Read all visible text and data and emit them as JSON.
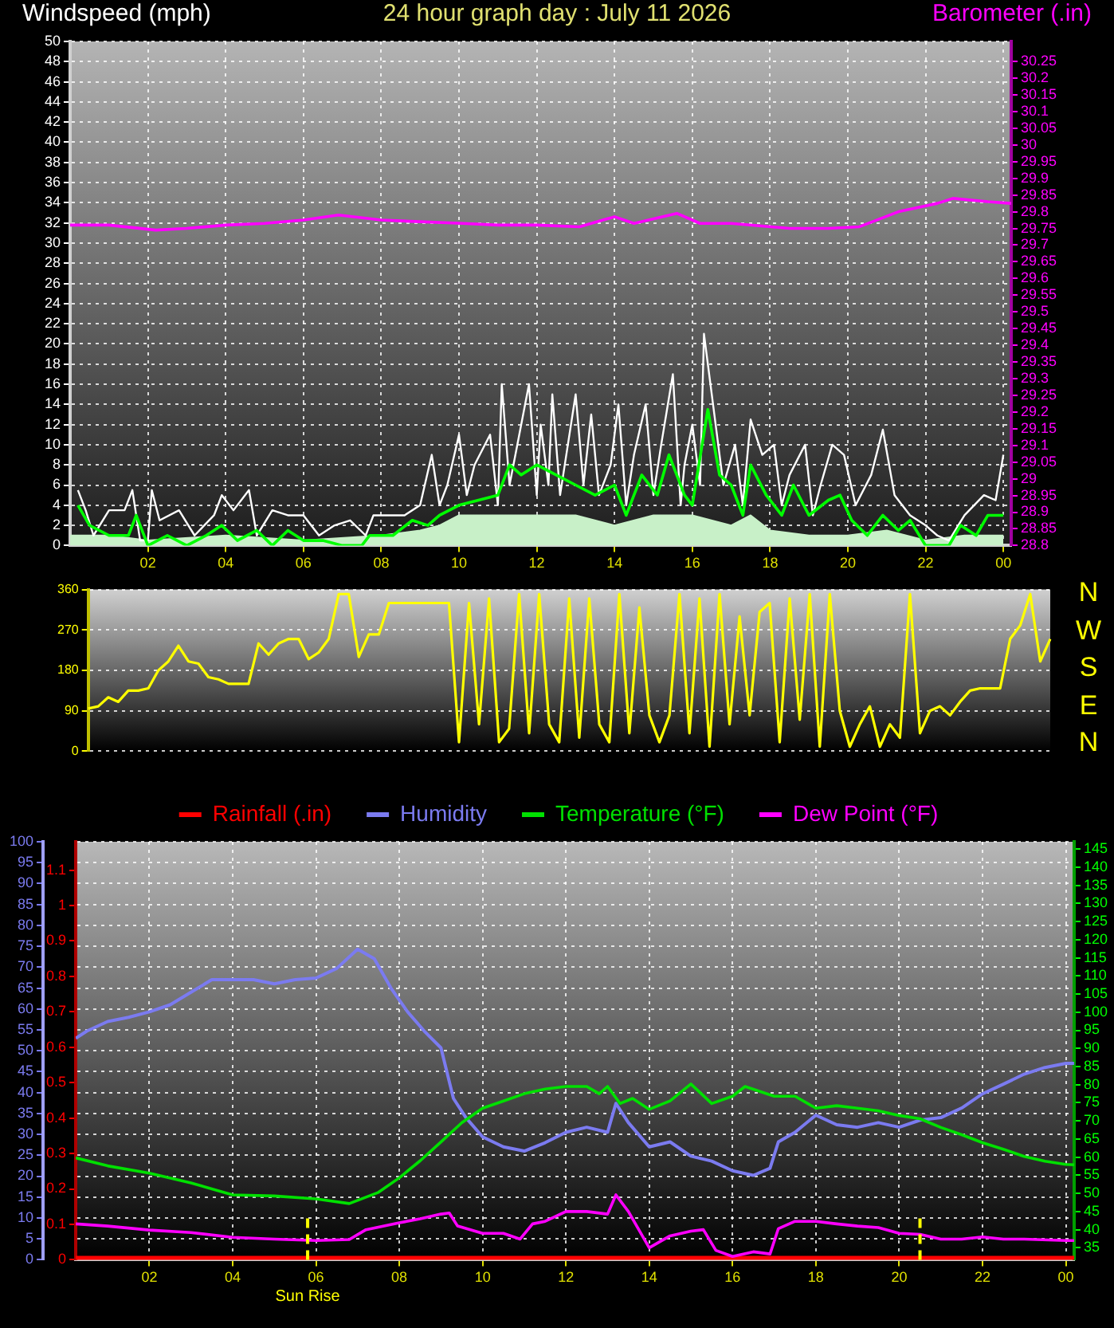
{
  "chart_data": [
    {
      "type": "line",
      "title": "24 hour graph day : July 11 2026",
      "ylabel": "Windspeed (mph)",
      "y2label": "Barometer (.in)",
      "xlim": [
        "2026-07-11T00:00",
        "2026-07-12T00:12"
      ],
      "xticks": [
        {
          "value": "2026-07-11T02:00",
          "label": "02"
        },
        {
          "value": "2026-07-11T04:00",
          "label": "04"
        },
        {
          "value": "2026-07-11T06:00",
          "label": "06"
        },
        {
          "value": "2026-07-11T08:00",
          "label": "08"
        },
        {
          "value": "2026-07-11T10:00",
          "label": "10"
        },
        {
          "value": "2026-07-11T12:00",
          "label": "12"
        },
        {
          "value": "2026-07-11T14:00",
          "label": "14"
        },
        {
          "value": "2026-07-11T16:00",
          "label": "16"
        },
        {
          "value": "2026-07-11T18:00",
          "label": "18"
        },
        {
          "value": "2026-07-11T20:00",
          "label": "20"
        },
        {
          "value": "2026-07-11T22:00",
          "label": "22"
        },
        {
          "value": "2026-07-12T00:00",
          "label": "00"
        }
      ],
      "ylim": [
        0,
        50
      ],
      "yticks": [
        0,
        2,
        4,
        6,
        8,
        10,
        12,
        14,
        16,
        18,
        20,
        22,
        24,
        26,
        28,
        30,
        32,
        34,
        36,
        38,
        40,
        42,
        44,
        46,
        48,
        50
      ],
      "y2lim": [
        28.8,
        30.31
      ],
      "y2ticks": [
        28.8,
        28.85,
        28.9,
        28.95,
        29,
        29.05,
        29.1,
        29.15,
        29.2,
        29.25,
        29.3,
        29.35,
        29.4,
        29.45,
        29.5,
        29.55,
        29.6,
        29.65,
        29.7,
        29.75,
        29.8,
        29.85,
        29.9,
        29.95,
        30,
        30.05,
        30.1,
        30.15,
        30.2,
        30.25
      ],
      "grid": true,
      "series": [
        {
          "type": "area",
          "color": "#c8f0c8",
          "x": [
            "2026-07-11T00:00",
            "2026-07-11T01:00",
            "2026-07-11T02:00",
            "2026-07-11T04:00",
            "2026-07-11T06:00",
            "2026-07-11T08:00",
            "2026-07-11T09:00",
            "2026-07-11T09:30",
            "2026-07-11T10:00",
            "2026-07-11T11:00",
            "2026-07-11T12:00",
            "2026-07-11T13:00",
            "2026-07-11T14:00",
            "2026-07-11T15:00",
            "2026-07-11T16:00",
            "2026-07-11T17:00",
            "2026-07-11T17:30",
            "2026-07-11T18:00",
            "2026-07-11T19:00",
            "2026-07-11T20:00",
            "2026-07-11T21:00",
            "2026-07-11T22:00",
            "2026-07-11T23:00",
            "2026-07-12T00:00"
          ],
          "values": [
            1,
            1,
            0.5,
            1,
            0.5,
            1,
            1.5,
            2,
            3,
            3,
            3,
            3,
            2,
            3,
            3,
            2,
            3,
            1.5,
            1,
            1,
            1.5,
            0.5,
            1,
            1
          ]
        },
        {
          "color": "#ffffff",
          "x": [
            "2026-07-11T00:12",
            "2026-07-11T00:24",
            "2026-07-11T00:36",
            "2026-07-11T01:00",
            "2026-07-11T01:24",
            "2026-07-11T01:36",
            "2026-07-11T01:48",
            "2026-07-11T02:00",
            "2026-07-11T02:06",
            "2026-07-11T02:18",
            "2026-07-11T02:48",
            "2026-07-11T03:12",
            "2026-07-11T03:42",
            "2026-07-11T03:54",
            "2026-07-11T04:12",
            "2026-07-11T04:36",
            "2026-07-11T04:48",
            "2026-07-11T05:12",
            "2026-07-11T05:36",
            "2026-07-11T06:00",
            "2026-07-11T06:24",
            "2026-07-11T06:48",
            "2026-07-11T07:12",
            "2026-07-11T07:36",
            "2026-07-11T07:48",
            "2026-07-11T08:12",
            "2026-07-11T08:36",
            "2026-07-11T09:00",
            "2026-07-11T09:18",
            "2026-07-11T09:30",
            "2026-07-11T09:42",
            "2026-07-11T10:00",
            "2026-07-11T10:12",
            "2026-07-11T10:24",
            "2026-07-11T10:48",
            "2026-07-11T11:00",
            "2026-07-11T11:06",
            "2026-07-11T11:18",
            "2026-07-11T11:30",
            "2026-07-11T11:48",
            "2026-07-11T12:00",
            "2026-07-11T12:06",
            "2026-07-11T12:18",
            "2026-07-11T12:24",
            "2026-07-11T12:36",
            "2026-07-11T12:48",
            "2026-07-11T13:00",
            "2026-07-11T13:12",
            "2026-07-11T13:24",
            "2026-07-11T13:36",
            "2026-07-11T13:54",
            "2026-07-11T14:06",
            "2026-07-11T14:18",
            "2026-07-11T14:30",
            "2026-07-11T14:48",
            "2026-07-11T15:00",
            "2026-07-11T15:12",
            "2026-07-11T15:30",
            "2026-07-11T15:42",
            "2026-07-11T15:48",
            "2026-07-11T16:00",
            "2026-07-11T16:12",
            "2026-07-11T16:18",
            "2026-07-11T16:30",
            "2026-07-11T16:48",
            "2026-07-11T17:06",
            "2026-07-11T17:18",
            "2026-07-11T17:30",
            "2026-07-11T17:48",
            "2026-07-11T18:06",
            "2026-07-11T18:18",
            "2026-07-11T18:30",
            "2026-07-11T18:54",
            "2026-07-11T19:06",
            "2026-07-11T19:18",
            "2026-07-11T19:36",
            "2026-07-11T19:54",
            "2026-07-11T20:12",
            "2026-07-11T20:36",
            "2026-07-11T20:54",
            "2026-07-11T21:12",
            "2026-07-11T21:36",
            "2026-07-11T22:00",
            "2026-07-11T22:18",
            "2026-07-11T22:36",
            "2026-07-11T23:00",
            "2026-07-11T23:30",
            "2026-07-11T23:48",
            "2026-07-12T00:00"
          ],
          "values": [
            5.5,
            3.5,
            1,
            3.5,
            3.5,
            5.5,
            0.5,
            0.5,
            5.5,
            2.5,
            3.5,
            1,
            3,
            5,
            3.5,
            5.5,
            1,
            3.5,
            3,
            3,
            1,
            2,
            2.5,
            1,
            3,
            3,
            3,
            4,
            9,
            4,
            6,
            11,
            5,
            8,
            11,
            4,
            16,
            6,
            10,
            16,
            5,
            12,
            6,
            15,
            5,
            10,
            15,
            6,
            13,
            5,
            8,
            14,
            4,
            9,
            14,
            5,
            10,
            17,
            4,
            8,
            12,
            6,
            21,
            15,
            6,
            10,
            4,
            12.5,
            9,
            10,
            4,
            7,
            10,
            3,
            6,
            10,
            9,
            4,
            7,
            11.5,
            5,
            3,
            2,
            1,
            0.5,
            3,
            5,
            4.5,
            9
          ]
        },
        {
          "color": "#00ff00",
          "x": [
            "2026-07-11T00:12",
            "2026-07-11T00:30",
            "2026-07-11T01:00",
            "2026-07-11T01:30",
            "2026-07-11T01:42",
            "2026-07-11T02:00",
            "2026-07-11T02:30",
            "2026-07-11T03:00",
            "2026-07-11T03:30",
            "2026-07-11T03:54",
            "2026-07-11T04:18",
            "2026-07-11T04:48",
            "2026-07-11T05:12",
            "2026-07-11T05:36",
            "2026-07-11T06:00",
            "2026-07-11T06:30",
            "2026-07-11T07:00",
            "2026-07-11T07:30",
            "2026-07-11T07:42",
            "2026-07-11T08:18",
            "2026-07-11T08:48",
            "2026-07-11T09:12",
            "2026-07-11T09:30",
            "2026-07-11T10:00",
            "2026-07-11T10:30",
            "2026-07-11T11:00",
            "2026-07-11T11:18",
            "2026-07-11T11:36",
            "2026-07-11T12:00",
            "2026-07-11T12:30",
            "2026-07-11T13:00",
            "2026-07-11T13:30",
            "2026-07-11T14:00",
            "2026-07-11T14:18",
            "2026-07-11T14:42",
            "2026-07-11T15:06",
            "2026-07-11T15:24",
            "2026-07-11T15:48",
            "2026-07-11T16:00",
            "2026-07-11T16:24",
            "2026-07-11T16:42",
            "2026-07-11T17:00",
            "2026-07-11T17:18",
            "2026-07-11T17:30",
            "2026-07-11T17:54",
            "2026-07-11T18:18",
            "2026-07-11T18:36",
            "2026-07-11T19:00",
            "2026-07-11T19:30",
            "2026-07-11T19:48",
            "2026-07-11T20:06",
            "2026-07-11T20:30",
            "2026-07-11T20:54",
            "2026-07-11T21:18",
            "2026-07-11T21:36",
            "2026-07-11T22:00",
            "2026-07-11T22:36",
            "2026-07-11T22:54",
            "2026-07-11T23:18",
            "2026-07-11T23:36",
            "2026-07-12T00:00"
          ],
          "values": [
            4,
            2,
            1,
            1,
            3,
            0,
            1,
            0,
            1,
            2,
            0.5,
            1.5,
            0,
            1.5,
            0.5,
            0.5,
            0,
            0,
            1,
            1,
            2.5,
            2,
            3,
            4,
            4.5,
            5,
            8,
            7,
            8,
            7,
            6,
            5,
            6,
            3,
            7,
            5,
            9,
            5,
            4,
            13.5,
            7,
            6,
            3,
            8,
            5,
            3,
            6,
            3,
            4.5,
            5,
            2.5,
            1,
            3,
            1.5,
            2.5,
            0,
            0,
            2,
            1,
            3,
            3
          ]
        },
        {
          "color": "#ff00ff",
          "axis": "y2",
          "x": [
            "2026-07-11T00:00",
            "2026-07-11T01:00",
            "2026-07-11T02:12",
            "2026-07-11T03:00",
            "2026-07-11T04:00",
            "2026-07-11T05:00",
            "2026-07-11T06:00",
            "2026-07-11T06:54",
            "2026-07-11T08:00",
            "2026-07-11T09:00",
            "2026-07-11T10:06",
            "2026-07-11T11:00",
            "2026-07-11T12:00",
            "2026-07-11T13:06",
            "2026-07-11T14:00",
            "2026-07-11T14:30",
            "2026-07-11T15:36",
            "2026-07-11T16:12",
            "2026-07-11T17:00",
            "2026-07-11T18:30",
            "2026-07-11T19:30",
            "2026-07-11T20:18",
            "2026-07-11T21:18",
            "2026-07-11T22:18",
            "2026-07-11T22:42",
            "2026-07-11T23:36",
            "2026-07-12T00:12"
          ],
          "values": [
            29.76,
            29.76,
            29.745,
            29.75,
            29.76,
            29.765,
            29.775,
            29.79,
            29.775,
            29.77,
            29.765,
            29.76,
            29.76,
            29.755,
            29.785,
            29.765,
            29.795,
            29.765,
            29.765,
            29.75,
            29.75,
            29.755,
            29.8,
            29.825,
            29.84,
            29.83,
            29.825
          ]
        }
      ]
    },
    {
      "type": "line",
      "categories": [
        null,
        null,
        null,
        null,
        null,
        null,
        null,
        null,
        null,
        null,
        null,
        null,
        null,
        null,
        null,
        null,
        null,
        null,
        null,
        null,
        null,
        null,
        null,
        null,
        null,
        null,
        null,
        null,
        null,
        null,
        null,
        null,
        null,
        null,
        null,
        null,
        null,
        null,
        null,
        null,
        null,
        null,
        null,
        null,
        null,
        null,
        null,
        null,
        null,
        null,
        null,
        null,
        null,
        null,
        null,
        null,
        null,
        null,
        null,
        null,
        null,
        null,
        null,
        null,
        null,
        null,
        null,
        null,
        null,
        null,
        null,
        null,
        null,
        null,
        null,
        null,
        null,
        null,
        null,
        null,
        null,
        null,
        null,
        null,
        null,
        null,
        null,
        null,
        null,
        null,
        null,
        null,
        null,
        null,
        null,
        null,
        null
      ],
      "ylim": [
        0,
        360
      ],
      "yticks": [
        0,
        90,
        180,
        270,
        360
      ],
      "grid": "y",
      "tick_labels": "y",
      "annotations": [
        "N",
        "W",
        "S",
        "E",
        "N"
      ],
      "series": [
        {
          "color": "#ffff00",
          "values": [
            95,
            100,
            120,
            110,
            135,
            135,
            140,
            180,
            200,
            235,
            200,
            195,
            165,
            160,
            150,
            150,
            150,
            240,
            215,
            240,
            250,
            250,
            205,
            220,
            250,
            350,
            350,
            210,
            260,
            260,
            330,
            330,
            330,
            330,
            330,
            330,
            330,
            20,
            330,
            60,
            340,
            20,
            50,
            350,
            40,
            350,
            60,
            20,
            340,
            30,
            340,
            60,
            20,
            350,
            40,
            320,
            80,
            20,
            80,
            350,
            40,
            340,
            10,
            350,
            60,
            300,
            80,
            310,
            330,
            20,
            340,
            70,
            350,
            10,
            350,
            90,
            10,
            60,
            100,
            10,
            60,
            30,
            350,
            40,
            90,
            100,
            80,
            110,
            135,
            140,
            140,
            140,
            250,
            280,
            350,
            200,
            250
          ]
        }
      ]
    },
    {
      "type": "line",
      "legend": "top",
      "xlim": [
        "2026-07-11T00:14",
        "2026-07-12T00:12"
      ],
      "xticks": [
        {
          "value": "2026-07-11T02:00",
          "label": "02"
        },
        {
          "value": "2026-07-11T04:00",
          "label": "04"
        },
        {
          "value": "2026-07-11T06:00",
          "label": "06"
        },
        {
          "value": "2026-07-11T08:00",
          "label": "08"
        },
        {
          "value": "2026-07-11T10:00",
          "label": "10"
        },
        {
          "value": "2026-07-11T12:00",
          "label": "12"
        },
        {
          "value": "2026-07-11T14:00",
          "label": "14"
        },
        {
          "value": "2026-07-11T16:00",
          "label": "16"
        },
        {
          "value": "2026-07-11T18:00",
          "label": "18"
        },
        {
          "value": "2026-07-11T20:00",
          "label": "20"
        },
        {
          "value": "2026-07-11T22:00",
          "label": "22"
        },
        {
          "value": "2026-07-12T00:00",
          "label": "00"
        }
      ],
      "ylim": [
        0,
        100
      ],
      "yticks": [
        0,
        5,
        10,
        15,
        20,
        25,
        30,
        35,
        40,
        45,
        50,
        55,
        60,
        65,
        70,
        75,
        80,
        85,
        90,
        95,
        100
      ],
      "y2lim": [
        0,
        1.18
      ],
      "y2ticks": [
        0,
        0.1,
        0.2,
        0.3,
        0.4,
        0.5,
        0.6,
        0.7,
        0.8,
        0.9,
        1,
        1.1
      ],
      "y3lim": [
        31.7,
        147
      ],
      "y3ticks": [
        35,
        40,
        45,
        50,
        55,
        60,
        65,
        70,
        75,
        80,
        85,
        90,
        95,
        100,
        105,
        110,
        115,
        120,
        125,
        130,
        135,
        140,
        145
      ],
      "grid": true,
      "ref_lines": [
        {
          "axis": "x",
          "value": "2026-07-11T05:48",
          "label": "Sun Rise",
          "color": "#ffff00",
          "line_style": "dashed"
        },
        {
          "axis": "x",
          "value": "2026-07-11T20:30",
          "color": "#ffff00",
          "line_style": "dashed"
        }
      ],
      "series": [
        {
          "name": "Rainfall (.in)",
          "color": "#ff0000",
          "axis": "y2",
          "x": [
            "2026-07-11T00:14",
            "2026-07-12T00:12"
          ],
          "values": [
            0,
            0
          ]
        },
        {
          "name": "Humidity",
          "color": "#7b7bf0",
          "x": [
            "2026-07-11T00:14",
            "2026-07-11T00:30",
            "2026-07-11T01:00",
            "2026-07-11T01:30",
            "2026-07-11T02:00",
            "2026-07-11T02:30",
            "2026-07-11T03:00",
            "2026-07-11T03:30",
            "2026-07-11T04:00",
            "2026-07-11T04:30",
            "2026-07-11T05:00",
            "2026-07-11T05:30",
            "2026-07-11T06:00",
            "2026-07-11T06:30",
            "2026-07-11T07:00",
            "2026-07-11T07:24",
            "2026-07-11T07:48",
            "2026-07-11T08:12",
            "2026-07-11T08:36",
            "2026-07-11T09:00",
            "2026-07-11T09:18",
            "2026-07-11T09:36",
            "2026-07-11T10:00",
            "2026-07-11T10:30",
            "2026-07-11T11:00",
            "2026-07-11T11:30",
            "2026-07-11T12:00",
            "2026-07-11T12:30",
            "2026-07-11T13:00",
            "2026-07-11T13:12",
            "2026-07-11T13:30",
            "2026-07-11T14:00",
            "2026-07-11T14:30",
            "2026-07-11T15:00",
            "2026-07-11T15:30",
            "2026-07-11T16:00",
            "2026-07-11T16:30",
            "2026-07-11T16:54",
            "2026-07-11T17:06",
            "2026-07-11T17:30",
            "2026-07-11T18:00",
            "2026-07-11T18:30",
            "2026-07-11T19:00",
            "2026-07-11T19:30",
            "2026-07-11T20:00",
            "2026-07-11T20:30",
            "2026-07-11T21:00",
            "2026-07-11T21:30",
            "2026-07-11T22:00",
            "2026-07-11T22:30",
            "2026-07-11T23:00",
            "2026-07-11T23:30",
            "2026-07-12T00:00",
            "2026-07-12T00:12"
          ],
          "values": [
            53,
            54.7,
            57,
            58,
            59.3,
            61,
            64,
            67,
            67,
            67,
            66,
            67,
            67.4,
            69.7,
            74.3,
            72,
            65,
            59.3,
            54.7,
            50.7,
            38.6,
            34,
            29.4,
            27,
            26,
            28,
            30.5,
            31.7,
            30.5,
            37.4,
            32.8,
            27,
            28.2,
            24.8,
            23.6,
            21.3,
            20.2,
            21.9,
            28.2,
            30.5,
            34.6,
            32.3,
            31.7,
            32.8,
            31.7,
            33.4,
            34,
            36.3,
            39.7,
            42,
            44.4,
            46,
            47,
            47
          ]
        },
        {
          "name": "Temperature (°F)",
          "color": "#00e000",
          "axis": "y3",
          "x": [
            "2026-07-11T00:14",
            "2026-07-11T01:00",
            "2026-07-11T02:00",
            "2026-07-11T03:00",
            "2026-07-11T04:00",
            "2026-07-11T05:00",
            "2026-07-11T06:00",
            "2026-07-11T06:48",
            "2026-07-11T07:30",
            "2026-07-11T08:00",
            "2026-07-11T08:30",
            "2026-07-11T09:00",
            "2026-07-11T09:30",
            "2026-07-11T10:00",
            "2026-07-11T10:30",
            "2026-07-11T11:00",
            "2026-07-11T11:30",
            "2026-07-11T12:00",
            "2026-07-11T12:30",
            "2026-07-11T12:48",
            "2026-07-11T13:00",
            "2026-07-11T13:18",
            "2026-07-11T13:36",
            "2026-07-11T14:00",
            "2026-07-11T14:30",
            "2026-07-11T15:00",
            "2026-07-11T15:30",
            "2026-07-11T16:00",
            "2026-07-11T16:18",
            "2026-07-11T17:00",
            "2026-07-11T17:30",
            "2026-07-11T18:00",
            "2026-07-11T18:30",
            "2026-07-11T19:00",
            "2026-07-11T19:30",
            "2026-07-11T20:00",
            "2026-07-11T20:30",
            "2026-07-11T21:00",
            "2026-07-11T21:30",
            "2026-07-11T22:00",
            "2026-07-11T22:30",
            "2026-07-11T23:00",
            "2026-07-11T23:30",
            "2026-07-12T00:00",
            "2026-07-12T00:12"
          ],
          "values": [
            59.8,
            57.6,
            55.6,
            52.9,
            49.6,
            49.3,
            48.5,
            47.2,
            50.3,
            54.3,
            59,
            64.2,
            69.5,
            73.5,
            75.5,
            77.5,
            78.8,
            79.5,
            79.5,
            77.5,
            79.5,
            74.8,
            76.2,
            73.2,
            75.5,
            80.2,
            74.8,
            76.8,
            79.5,
            76.8,
            76.8,
            73.5,
            74.2,
            73.5,
            72.8,
            71.5,
            70.6,
            68.2,
            66.2,
            64,
            62.2,
            60.2,
            58.9,
            58,
            57.9
          ]
        },
        {
          "name": "Dew Point (°F)",
          "color": "#ff00ff",
          "axis": "y3",
          "x": [
            "2026-07-11T00:14",
            "2026-07-11T01:00",
            "2026-07-11T02:00",
            "2026-07-11T03:00",
            "2026-07-11T04:00",
            "2026-07-11T05:00",
            "2026-07-11T06:00",
            "2026-07-11T06:48",
            "2026-07-11T07:12",
            "2026-07-11T08:00",
            "2026-07-11T08:30",
            "2026-07-11T09:00",
            "2026-07-11T09:12",
            "2026-07-11T09:24",
            "2026-07-11T10:00",
            "2026-07-11T10:30",
            "2026-07-11T10:54",
            "2026-07-11T11:12",
            "2026-07-11T11:30",
            "2026-07-11T12:00",
            "2026-07-11T12:30",
            "2026-07-11T13:00",
            "2026-07-11T13:12",
            "2026-07-11T13:30",
            "2026-07-11T14:00",
            "2026-07-11T14:30",
            "2026-07-11T15:00",
            "2026-07-11T15:18",
            "2026-07-11T15:36",
            "2026-07-11T16:00",
            "2026-07-11T16:30",
            "2026-07-11T16:54",
            "2026-07-11T17:06",
            "2026-07-11T17:30",
            "2026-07-11T18:00",
            "2026-07-11T18:30",
            "2026-07-11T19:00",
            "2026-07-11T19:30",
            "2026-07-11T20:00",
            "2026-07-11T20:30",
            "2026-07-11T21:00",
            "2026-07-11T21:30",
            "2026-07-11T22:00",
            "2026-07-11T22:30",
            "2026-07-11T23:00",
            "2026-07-12T00:00",
            "2026-07-12T00:12"
          ],
          "values": [
            41.6,
            41,
            39.9,
            39.2,
            37.9,
            37.4,
            37,
            37.3,
            40,
            41.9,
            43,
            44.3,
            44.6,
            41,
            39,
            39,
            37.4,
            41.6,
            42.3,
            45,
            45,
            44.3,
            49.6,
            45,
            35,
            38.3,
            39.6,
            40,
            34.3,
            32.6,
            33.9,
            33.3,
            40.3,
            42.3,
            42.3,
            41.6,
            41,
            40.6,
            39,
            38.7,
            37.4,
            37.4,
            38,
            37.4,
            37.4,
            37,
            37
          ]
        }
      ]
    }
  ]
}
